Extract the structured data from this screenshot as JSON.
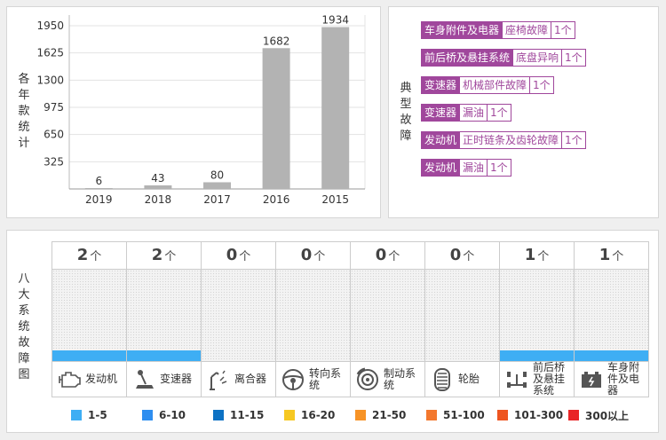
{
  "yearly": {
    "vertical_label": [
      "各",
      "年",
      "款",
      "统",
      "计"
    ],
    "chart_data": {
      "type": "bar",
      "categories": [
        "2019",
        "2018",
        "2017",
        "2016",
        "2015"
      ],
      "values": [
        6,
        43,
        80,
        1682,
        1934
      ],
      "ylim": [
        0,
        1950
      ],
      "yticks": [
        325,
        650,
        975,
        1300,
        1625,
        1950
      ],
      "data_labels": [
        "6",
        "43",
        "80",
        "1682",
        "1934"
      ],
      "bar_color": "#b3b3b3",
      "grid": true
    }
  },
  "faults": {
    "vertical_label": [
      "典",
      "型",
      "故",
      "障"
    ],
    "items": [
      {
        "system": "车身附件及电器",
        "desc": "座椅故障",
        "count": "1个"
      },
      {
        "system": "前后桥及悬挂系统",
        "desc": "底盘异响",
        "count": "1个"
      },
      {
        "system": "变速器",
        "desc": "机械部件故障",
        "count": "1个"
      },
      {
        "system": "变速器",
        "desc": "漏油",
        "count": "1个"
      },
      {
        "system": "发动机",
        "desc": "正时链条及齿轮故障",
        "count": "1个"
      },
      {
        "system": "发动机",
        "desc": "漏油",
        "count": "1个"
      }
    ]
  },
  "systems": {
    "vertical_label": [
      "八",
      "大",
      "系",
      "统",
      "故",
      "障",
      "图"
    ],
    "unit": "个",
    "columns": [
      {
        "count": "2",
        "level": 2,
        "name": "发动机",
        "icon": "engine-icon"
      },
      {
        "count": "2",
        "level": 2,
        "name": "变速器",
        "icon": "gear-shift-icon"
      },
      {
        "count": "0",
        "level": 0,
        "name": "离合器",
        "icon": "clutch-icon"
      },
      {
        "count": "0",
        "level": 0,
        "name": "转向系统",
        "icon": "steering-wheel-icon"
      },
      {
        "count": "0",
        "level": 0,
        "name": "制动系统",
        "icon": "brake-disc-icon"
      },
      {
        "count": "0",
        "level": 0,
        "name": "轮胎",
        "icon": "tire-icon"
      },
      {
        "count": "1",
        "level": 1,
        "name": "前后桥及悬挂系统",
        "icon": "suspension-icon"
      },
      {
        "count": "1",
        "level": 1,
        "name": "车身附件及电器",
        "icon": "battery-icon"
      }
    ],
    "level_color": "#3eaef4",
    "legend": [
      {
        "label": "1-5",
        "color": "#3eaef4"
      },
      {
        "label": "6-10",
        "color": "#2e8ef0"
      },
      {
        "label": "11-15",
        "color": "#0d72c4"
      },
      {
        "label": "16-20",
        "color": "#f6c822"
      },
      {
        "label": "21-50",
        "color": "#f79326"
      },
      {
        "label": "51-100",
        "color": "#f3782e"
      },
      {
        "label": "101-300",
        "color": "#ee5520"
      },
      {
        "label": "300以上",
        "color": "#e92526"
      }
    ]
  }
}
